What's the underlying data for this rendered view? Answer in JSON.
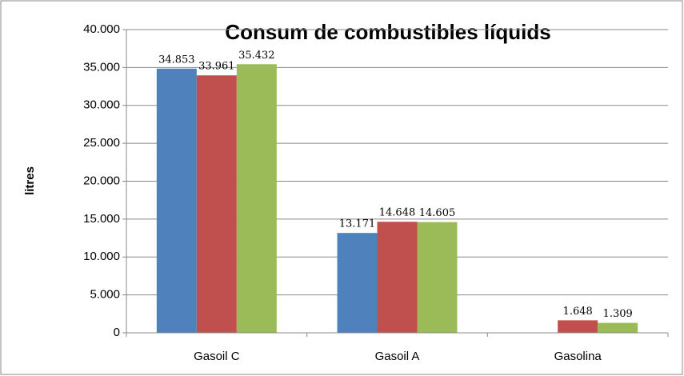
{
  "chart_data": {
    "type": "bar",
    "title": "Consum de combustibles líquids",
    "ylabel": "litres",
    "categories": [
      "Gasoil C",
      "Gasoil A",
      "Gasolina"
    ],
    "series": [
      {
        "color": "#4f81bd",
        "values": [
          34853,
          13171,
          null
        ],
        "value_labels": [
          "34.853",
          "13.171",
          null
        ]
      },
      {
        "color": "#c0504d",
        "values": [
          33961,
          14648,
          1648
        ],
        "value_labels": [
          "33.961",
          "14.648",
          "1.648"
        ]
      },
      {
        "color": "#9bbb59",
        "values": [
          35432,
          14605,
          1309
        ],
        "value_labels": [
          "35.432",
          "14.605",
          "1.309"
        ]
      }
    ],
    "ylim": [
      0,
      40000
    ],
    "yticks": [
      0,
      {
        "value": 5000,
        "label": "5.000"
      },
      {
        "value": 10000,
        "label": "10.000"
      },
      {
        "value": 15000,
        "label": "15.000"
      },
      {
        "value": 20000,
        "label": "20.000"
      },
      {
        "value": 25000,
        "label": "25.000"
      },
      {
        "value": 30000,
        "label": "30.000"
      },
      {
        "value": 35000,
        "label": "35.000"
      },
      {
        "value": 40000,
        "label": "40.000"
      }
    ],
    "grid": true
  }
}
